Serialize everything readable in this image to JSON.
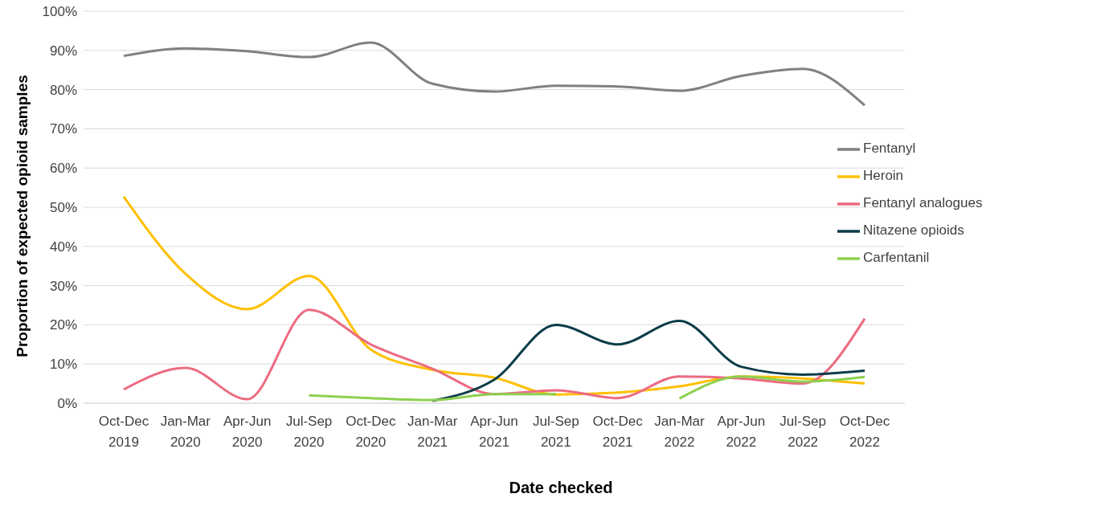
{
  "chart_data": {
    "type": "line",
    "xlabel": "Date checked",
    "ylabel": "Proportion of expected opioid samples",
    "categories": [
      "Oct-Dec 2019",
      "Jan-Mar 2020",
      "Apr-Jun 2020",
      "Jul-Sep 2020",
      "Oct-Dec 2020",
      "Jan-Mar 2021",
      "Apr-Jun 2021",
      "Jul-Sep 2021",
      "Oct-Dec 2021",
      "Jan-Mar 2022",
      "Apr-Jun 2022",
      "Jul-Sep 2022",
      "Oct-Dec 2022"
    ],
    "series": [
      {
        "name": "Fentanyl",
        "color": "#808080",
        "values": [
          88.6,
          90.5,
          89.8,
          88.3,
          92,
          81.5,
          79.5,
          81,
          80.8,
          79.7,
          83.5,
          85.3,
          76
        ]
      },
      {
        "name": "Heroin",
        "color": "#ffc000",
        "values": [
          52.7,
          33,
          24,
          32.5,
          13.7,
          8.5,
          6.5,
          2.2,
          2.7,
          4.3,
          6.8,
          6.3,
          5
        ]
      },
      {
        "name": "Fentanyl analogues",
        "color": "#ec6b81",
        "values": [
          3.5,
          9,
          1,
          23.8,
          15,
          8.8,
          2.3,
          3.3,
          1.3,
          6.8,
          6.3,
          5,
          21.6
        ]
      },
      {
        "name": "Nitazene opioids",
        "color": "#0b3c49",
        "values": [
          null,
          null,
          null,
          null,
          null,
          0.6,
          6,
          20,
          15,
          21,
          9.3,
          7.3,
          8.3
        ]
      },
      {
        "name": "Carfentanil",
        "color": "#8dd04f",
        "values": [
          null,
          null,
          null,
          2,
          1.3,
          0.8,
          2.3,
          2.3,
          null,
          1.2,
          6.8,
          5.5,
          6.7
        ]
      }
    ],
    "ylim": [
      0,
      100
    ],
    "yticks": [
      {
        "value": 0,
        "label": "0%"
      },
      {
        "value": 10,
        "label": "10%"
      },
      {
        "value": 20,
        "label": "20%"
      },
      {
        "value": 30,
        "label": "30%"
      },
      {
        "value": 40,
        "label": "40%"
      },
      {
        "value": 50,
        "label": "50%"
      },
      {
        "value": 60,
        "label": "60%"
      },
      {
        "value": 70,
        "label": "70%"
      },
      {
        "value": 80,
        "label": "80%"
      },
      {
        "value": 90,
        "label": "90%"
      },
      {
        "value": 100,
        "label": "100%"
      }
    ],
    "grid": "y",
    "legend": "right",
    "marker": "none",
    "line_style": "solid"
  }
}
